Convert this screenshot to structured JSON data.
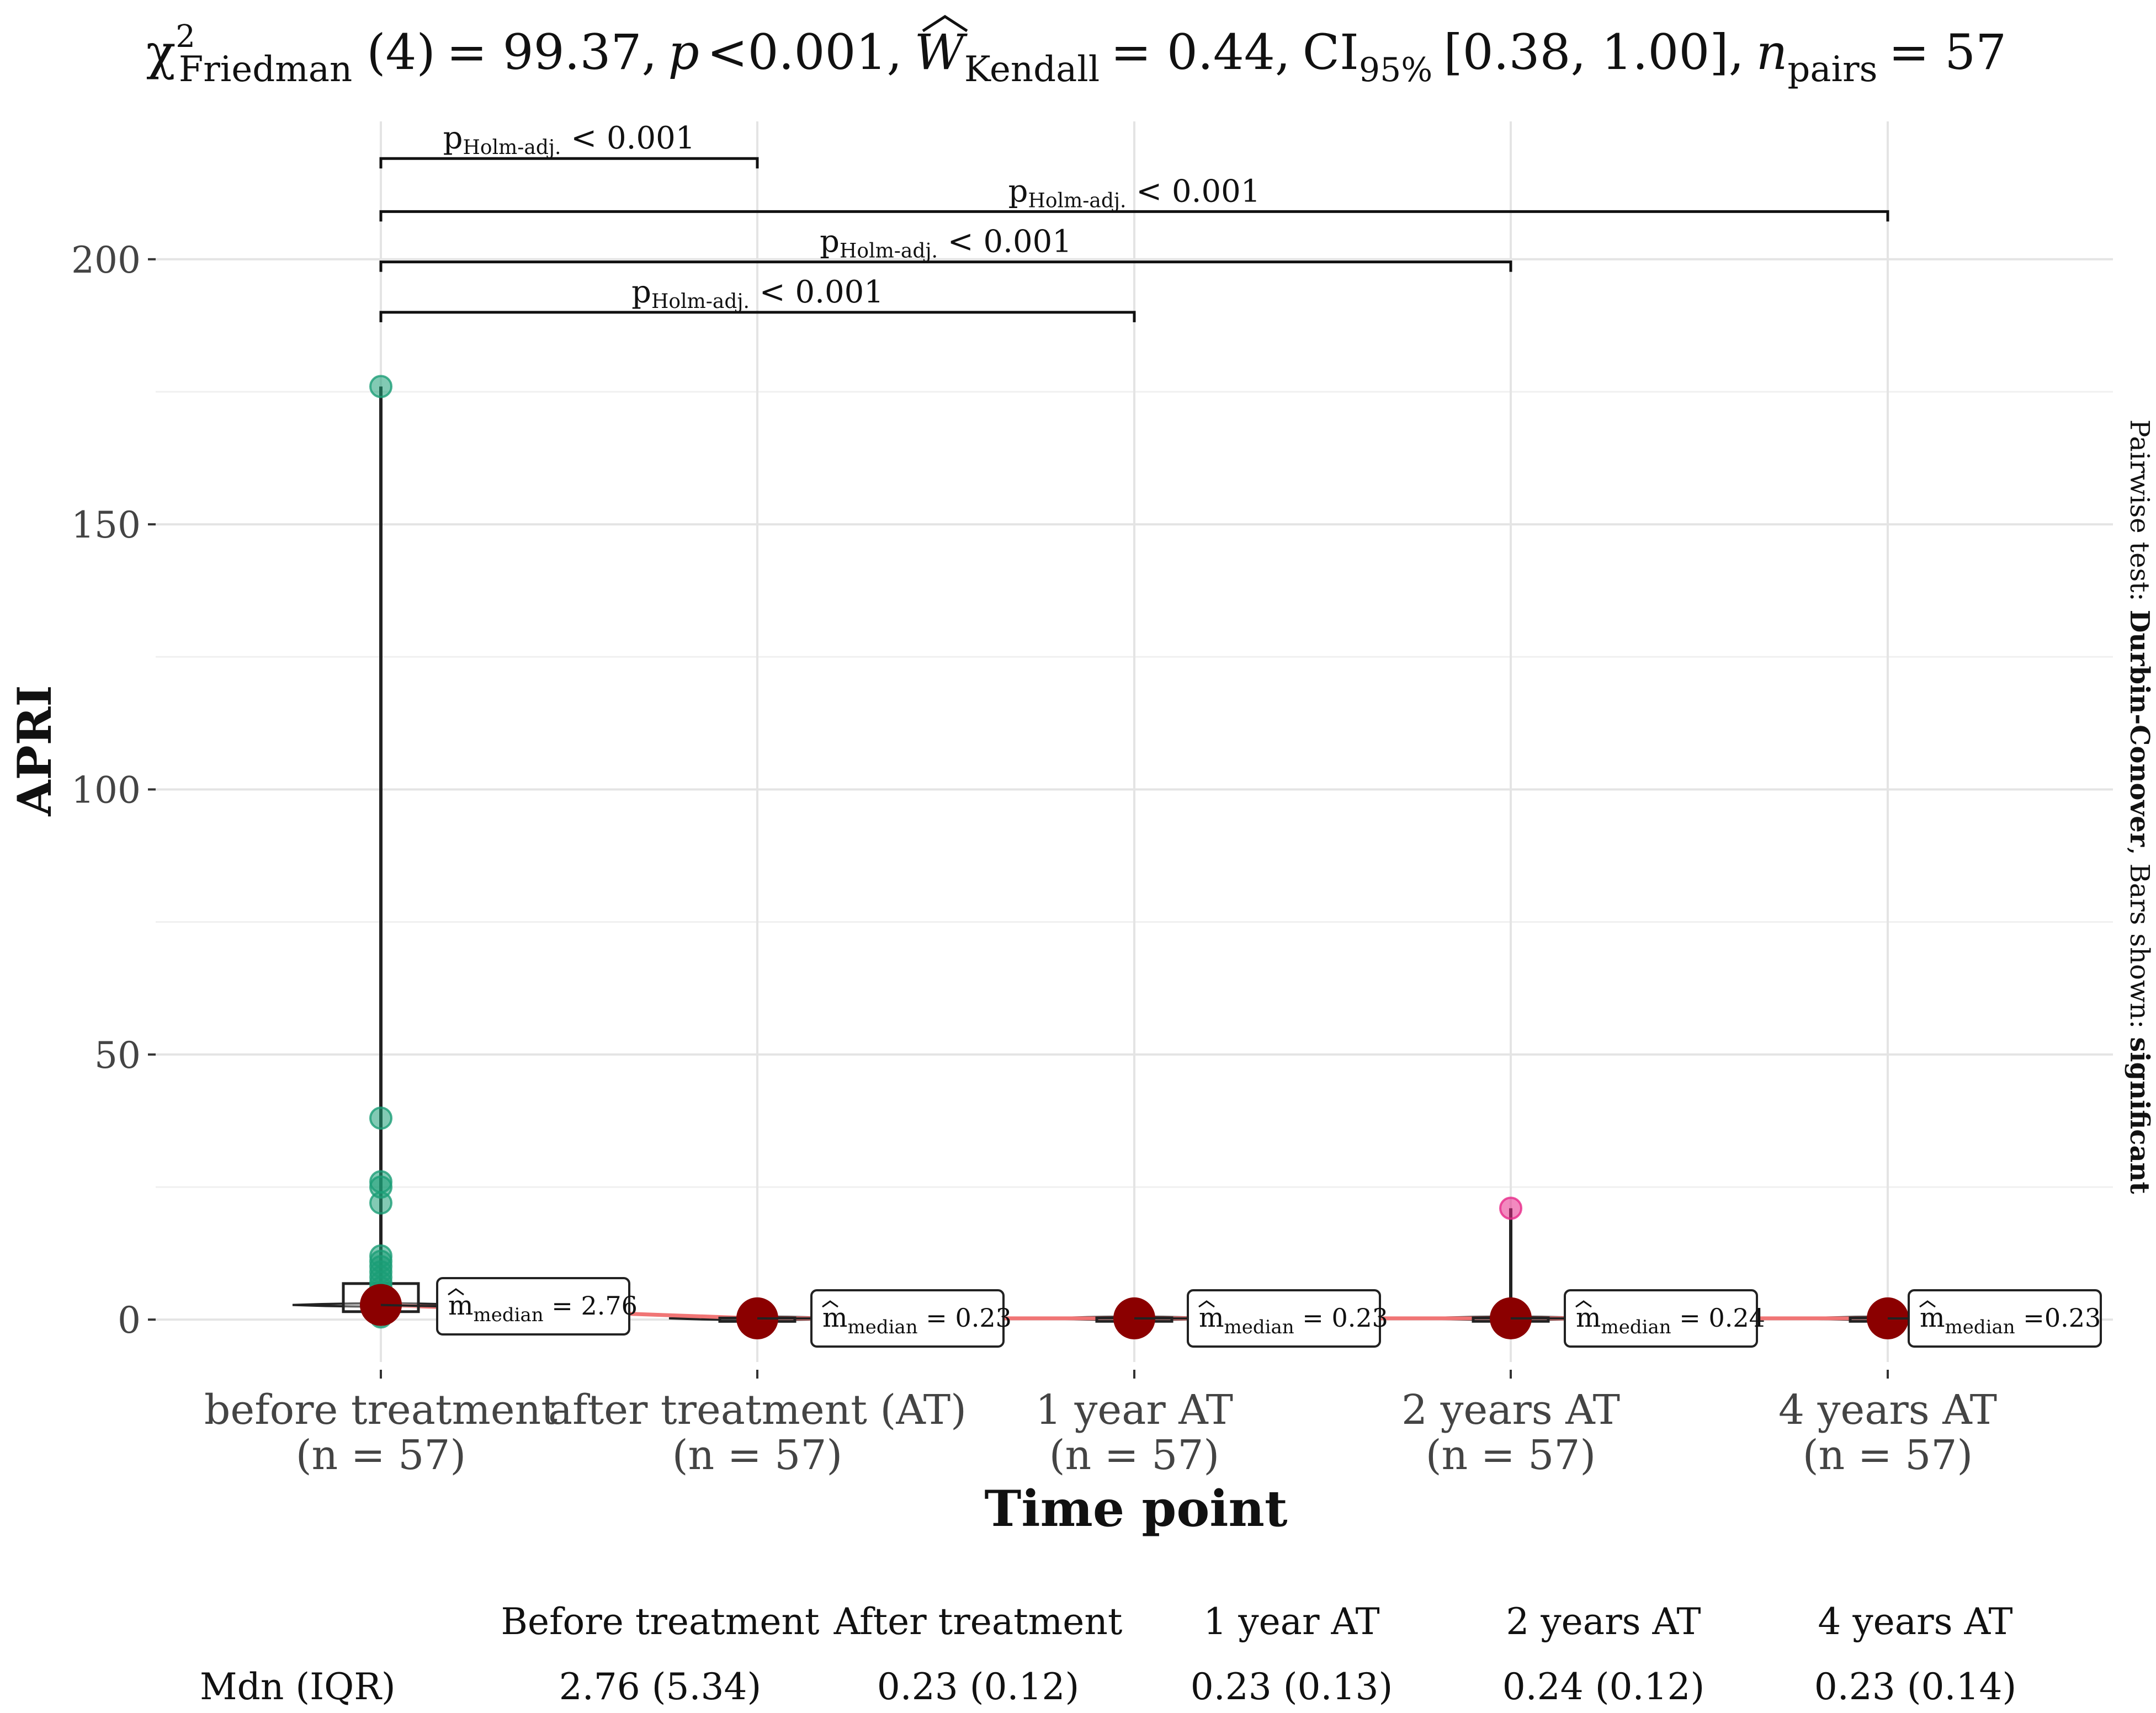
{
  "chart_data": {
    "type": "box-violin",
    "title_parts": {
      "chi_symbol": "χ",
      "chi_sup": "2",
      "chi_sub": "Friedman",
      "df": "(4)",
      "stat": "= 99.37,",
      "p_label": "p",
      "p_value": "<0.001,",
      "w_label": "W",
      "w_sub": "Kendall",
      "w_value": "= 0.44,",
      "ci_label": "CI",
      "ci_sub": "95%",
      "ci_value": "[0.38, 1.00],",
      "n_label": "n",
      "n_sub": "pairs",
      "n_value": "= 57"
    },
    "xlabel": "Time point",
    "ylabel": "APRI",
    "ylim": [
      -8,
      226
    ],
    "yticks": [
      0,
      50,
      100,
      150,
      200
    ],
    "categories": [
      {
        "name": "before treatment",
        "n": "(n = 57)"
      },
      {
        "name": "after treatment (AT)",
        "n": "(n = 57)"
      },
      {
        "name": "1 year AT",
        "n": "(n = 57)"
      },
      {
        "name": "2 years AT",
        "n": "(n = 57)"
      },
      {
        "name": "4 years AT",
        "n": "(n = 57)"
      }
    ],
    "medians": [
      2.76,
      0.23,
      0.23,
      0.24,
      0.23
    ],
    "median_labels": [
      {
        "m": "m",
        "sub": "median",
        "text": "= 2.76"
      },
      {
        "m": "m",
        "sub": "median",
        "text": "= 0.23"
      },
      {
        "m": "m",
        "sub": "median",
        "text": "= 0.23"
      },
      {
        "m": "m",
        "sub": "median",
        "text": "= 0.24"
      },
      {
        "m": "m",
        "sub": "median",
        "text": "=0.23"
      }
    ],
    "boxes": [
      {
        "q1": 1.5,
        "q3": 6.8,
        "whisker_max": 176
      },
      {
        "q1": 0.17,
        "q3": 0.29,
        "whisker_max": 0.5
      },
      {
        "q1": 0.17,
        "q3": 0.3,
        "whisker_max": 0.5
      },
      {
        "q1": 0.18,
        "q3": 0.3,
        "whisker_max": 21
      },
      {
        "q1": 0.16,
        "q3": 0.3,
        "whisker_max": 0.5
      }
    ],
    "points": [
      {
        "group": 0,
        "values": [
          176,
          38,
          26,
          25,
          22,
          12,
          11,
          10,
          9,
          8,
          7,
          6,
          5,
          4,
          3,
          2,
          1,
          0.5
        ]
      },
      {
        "group": 3,
        "values": [
          21
        ]
      }
    ],
    "point_colors": [
      "#1b9e77",
      "#d95f02",
      "#7570b3",
      "#e7298a",
      "#66a61e"
    ],
    "comparisons": [
      {
        "from": 0,
        "to": 1,
        "y": 219,
        "p_main": "p",
        "p_sub": "Holm-adj.",
        "p_value": "< 0.001"
      },
      {
        "from": 0,
        "to": 4,
        "y": 209,
        "p_main": "p",
        "p_sub": "Holm-adj.",
        "p_value": "< 0.001"
      },
      {
        "from": 0,
        "to": 3,
        "y": 199.5,
        "p_main": "p",
        "p_sub": "Holm-adj.",
        "p_value": "< 0.001"
      },
      {
        "from": 0,
        "to": 2,
        "y": 190,
        "p_main": "p",
        "p_sub": "Holm-adj.",
        "p_value": "< 0.001"
      }
    ],
    "side_caption": {
      "prefix": "Pairwise test: ",
      "test": "Durbin-Conover",
      "middle": ", Bars shown: ",
      "shown": "significant"
    },
    "median_line_color": "#f07575",
    "median_point_color": "#8b0000"
  },
  "table": {
    "headers": [
      "Before treatment",
      "After treatment",
      "1 year AT",
      "2 years AT",
      "4 years AT"
    ],
    "row_label": "Mdn (IQR)",
    "values": [
      "2.76 (5.34)",
      "0.23 (0.12)",
      "0.23 (0.13)",
      "0.24 (0.12)",
      "0.23 (0.14)"
    ]
  }
}
